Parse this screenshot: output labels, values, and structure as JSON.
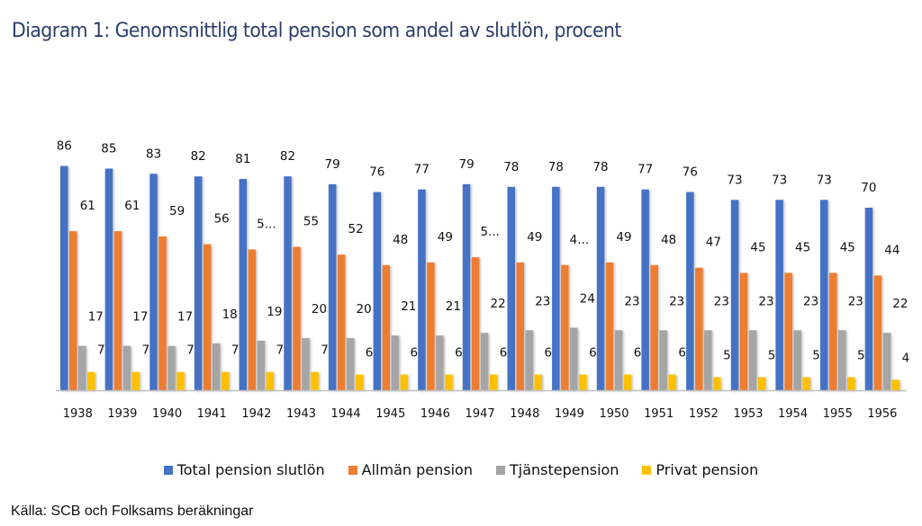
{
  "chart_data": {
    "type": "bar",
    "title": "Diagram 1: Genomsnittlig total pension som andel av slutlön, procent",
    "xlabel": "",
    "ylabel": "",
    "ylim": [
      0,
      90
    ],
    "grid": false,
    "legend_position": "bottom",
    "categories": [
      "1938",
      "1939",
      "1940",
      "1941",
      "1942",
      "1943",
      "1944",
      "1945",
      "1946",
      "1947",
      "1948",
      "1949",
      "1950",
      "1951",
      "1952",
      "1953",
      "1954",
      "1955",
      "1956"
    ],
    "series": [
      {
        "name": "Total pension slutlön",
        "color": "#4472c4",
        "values": [
          86,
          85,
          83,
          82,
          81,
          82,
          79,
          76,
          77,
          79,
          78,
          78,
          78,
          77,
          76,
          73,
          73,
          73,
          70
        ],
        "labels": [
          "86",
          "85",
          "83",
          "82",
          "81",
          "82",
          "79",
          "76",
          "77",
          "79",
          "78",
          "78",
          "78",
          "77",
          "76",
          "73",
          "73",
          "73",
          "70"
        ]
      },
      {
        "name": "Allmän pension",
        "color": "#ed7d31",
        "values": [
          61,
          61,
          59,
          56,
          54,
          55,
          52,
          48,
          49,
          51,
          49,
          48,
          49,
          48,
          47,
          45,
          45,
          45,
          44
        ],
        "labels": [
          "61",
          "61",
          "59",
          "56",
          "5...",
          "55",
          "52",
          "48",
          "49",
          "5...",
          "49",
          "4...",
          "49",
          "48",
          "47",
          "45",
          "45",
          "45",
          "44"
        ]
      },
      {
        "name": "Tjänstepension",
        "color": "#a5a5a5",
        "values": [
          17,
          17,
          17,
          18,
          19,
          20,
          20,
          21,
          21,
          22,
          23,
          24,
          23,
          23,
          23,
          23,
          23,
          23,
          22
        ],
        "labels": [
          "17",
          "17",
          "17",
          "18",
          "19",
          "20",
          "20",
          "21",
          "21",
          "22",
          "23",
          "24",
          "23",
          "23",
          "23",
          "23",
          "23",
          "23",
          "22"
        ]
      },
      {
        "name": "Privat pension",
        "color": "#ffc000",
        "values": [
          7,
          7,
          7,
          7,
          7,
          7,
          6,
          6,
          6,
          6,
          6,
          6,
          6,
          6,
          5,
          5,
          5,
          5,
          4
        ],
        "labels": [
          "7",
          "7",
          "7",
          "7",
          "7",
          "7",
          "6",
          "6",
          "6",
          "6",
          "6",
          "6",
          "6",
          "6",
          "5",
          "5",
          "5",
          "5",
          "4"
        ]
      }
    ],
    "source": "Källa: SCB och Folksams beräkningar"
  }
}
